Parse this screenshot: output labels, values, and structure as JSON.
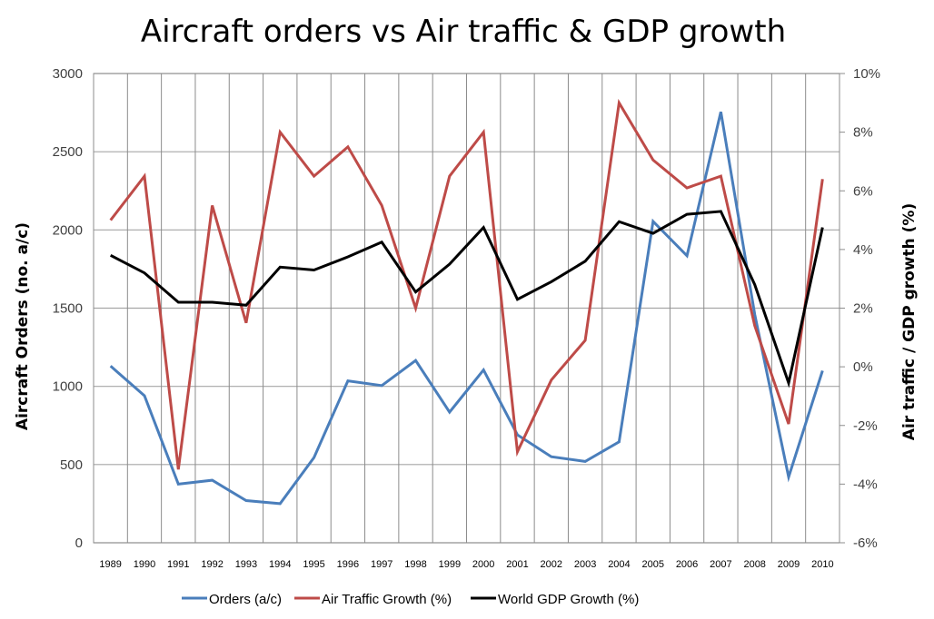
{
  "chart_data": {
    "type": "line",
    "title": "Aircraft orders vs Air traffic & GDP growth",
    "xlabel": "",
    "ylabel": "Aircraft Orders (no. a/c)",
    "y2label": "Air traffic  / GDP growth (%)",
    "ylim": [
      0,
      3000
    ],
    "y2lim": [
      -6,
      10
    ],
    "yticks": [
      "0",
      "500",
      "1000",
      "1500",
      "2000",
      "2500",
      "3000"
    ],
    "yticks_values": [
      0,
      500,
      1000,
      1500,
      2000,
      2500,
      3000
    ],
    "y2ticks": [
      "-6%",
      "-4%",
      "-2%",
      "0%",
      "2%",
      "4%",
      "6%",
      "8%",
      "10%"
    ],
    "y2ticks_values": [
      -6,
      -4,
      -2,
      0,
      2,
      4,
      6,
      8,
      10
    ],
    "grid": true,
    "legend_position": "bottom",
    "categories": [
      "1989",
      "1990",
      "1991",
      "1992",
      "1993",
      "1994",
      "1995",
      "1996",
      "1997",
      "1998",
      "1999",
      "2000",
      "2001",
      "2002",
      "2003",
      "2004",
      "2005",
      "2006",
      "2007",
      "2008",
      "2009",
      "2010"
    ],
    "series": [
      {
        "name": "Orders (a/c)",
        "axis": "left",
        "color": "#4a7ebb",
        "values": [
          1130,
          940,
          375,
          400,
          270,
          250,
          545,
          1035,
          1005,
          1165,
          835,
          1105,
          690,
          550,
          520,
          645,
          2055,
          1835,
          2755,
          1460,
          420,
          1100
        ]
      },
      {
        "name": "Air Traffic Growth (%)",
        "axis": "right",
        "color": "#be4b48",
        "values": [
          5.0,
          6.5,
          -3.5,
          5.5,
          1.5,
          8.0,
          6.5,
          7.5,
          5.5,
          2.0,
          6.5,
          8.0,
          -2.9,
          -0.45,
          0.9,
          9.0,
          7.05,
          6.1,
          6.5,
          1.4,
          -1.95,
          6.4
        ]
      },
      {
        "name": "World GDP Growth (%)",
        "axis": "right",
        "color": "#000000",
        "values": [
          3.8,
          3.2,
          2.2,
          2.2,
          2.1,
          3.4,
          3.3,
          3.75,
          4.25,
          2.55,
          3.5,
          4.75,
          2.3,
          2.9,
          3.6,
          4.95,
          4.55,
          5.2,
          5.3,
          2.8,
          -0.55,
          4.75
        ]
      }
    ]
  }
}
